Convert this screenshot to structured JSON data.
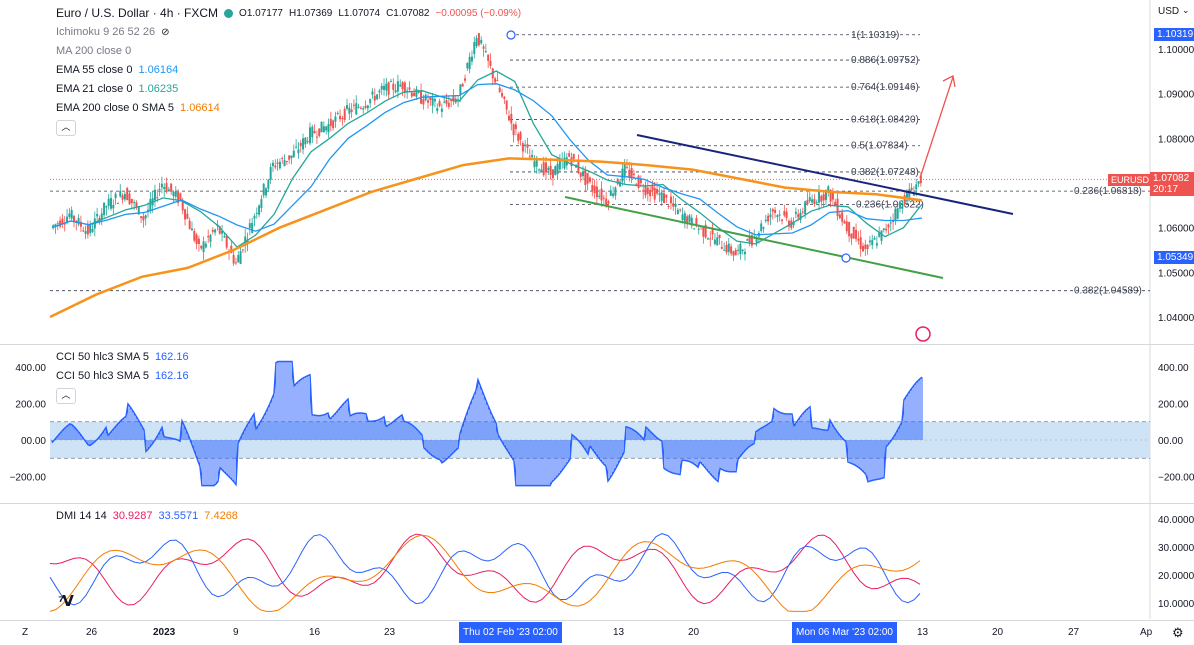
{
  "header": {
    "symbol_title": "Euro / U.S. Dollar · 4h · FXCM",
    "open": "O1.07177",
    "high": "H1.07369",
    "low": "L1.07074",
    "close": "C1.07082",
    "change": "−0.00095 (−0.09%)",
    "currency": "USD"
  },
  "indicators": [
    {
      "label": "Ichimoku 9 26 52 26",
      "value": ""
    },
    {
      "label": "MA 200 close 0",
      "value": ""
    },
    {
      "label": "EMA 55 close 0",
      "value": "1.06164"
    },
    {
      "label": "EMA 21 close 0",
      "value": "1.06235"
    },
    {
      "label": "EMA 200 close 0 SMA 5",
      "value": "1.06614"
    }
  ],
  "fib_levels": [
    {
      "label": "1(1.10319)",
      "price": 1.10319
    },
    {
      "label": "0.886(1.09752)",
      "price": 1.09752
    },
    {
      "label": "0.764(1.09146)",
      "price": 1.09146
    },
    {
      "label": "0.618(1.08420)",
      "price": 1.0842
    },
    {
      "label": "0.5(1.07834)",
      "price": 1.07834
    },
    {
      "label": "0.382(1.07248)",
      "price": 1.07248
    },
    {
      "label": "0.236(1.06818)",
      "price": 1.06818
    },
    {
      "label": "0.236(1.06522)",
      "price": 1.06522
    },
    {
      "label": "0.382(1.04589)",
      "price": 1.04589
    }
  ],
  "price_axis": {
    "ticks": [
      "1.10000",
      "1.09000",
      "1.08000",
      "1.06000",
      "1.05000",
      "1.04000"
    ],
    "current_price": "1.07082",
    "symbol_tag": "EURUSD",
    "countdown": "20:17",
    "top_tag": "1.10319",
    "low_tag": "1.05349"
  },
  "cci": {
    "label1": "CCI 50 hlc3 SMA 5",
    "value1": "162.16",
    "label2": "CCI 50 hlc3 SMA 5",
    "value2": "162.16",
    "ticks_left": [
      "400.00",
      "200.00",
      "00.00",
      "−200.00"
    ],
    "ticks_right": [
      "400.00",
      "200.00",
      "00.00",
      "−200.00"
    ]
  },
  "dmi": {
    "label": "DMI 14 14",
    "plus_di": "30.9287",
    "minus_di": "33.5571",
    "adx": "7.4268",
    "ticks": [
      "40.0000",
      "30.0000",
      "20.0000",
      "10.0000"
    ]
  },
  "time_axis": {
    "labels": [
      "26",
      "2023",
      "9",
      "16",
      "23",
      "13",
      "20",
      "13",
      "20",
      "27",
      "Ap"
    ],
    "crosshair_left": "Thu 02 Feb '23   02:00",
    "crosshair_right": "Mon 06 Mar '23   02:00",
    "zoom_btn": "Z",
    "gear": "⚙"
  },
  "chart_data": {
    "type": "line",
    "title": "Euro / U.S. Dollar · 4h · FXCM",
    "ylim": [
      1.035,
      1.106
    ],
    "series": [
      {
        "name": "EURUSD",
        "values": [
          1.06,
          1.063,
          1.059,
          1.065,
          1.068,
          1.062,
          1.07,
          1.066,
          1.055,
          1.06,
          1.052,
          1.063,
          1.074,
          1.076,
          1.081,
          1.083,
          1.086,
          1.088,
          1.091,
          1.092,
          1.089,
          1.087,
          1.089,
          1.1032,
          1.093,
          1.082,
          1.075,
          1.072,
          1.076,
          1.07,
          1.066,
          1.073,
          1.069,
          1.067,
          1.063,
          1.06,
          1.057,
          1.054,
          1.058,
          1.064,
          1.061,
          1.066,
          1.068,
          1.06,
          1.055,
          1.059,
          1.066,
          1.0708
        ]
      },
      {
        "name": "EMA 200 close 0 SMA 5",
        "values": [
          1.04,
          1.045,
          1.049,
          1.051,
          1.055,
          1.06,
          1.064,
          1.068,
          1.071,
          1.074,
          1.0755,
          1.0752,
          1.0748,
          1.074,
          1.073,
          1.071,
          1.069,
          1.068,
          1.0675,
          1.0661
        ]
      }
    ]
  }
}
